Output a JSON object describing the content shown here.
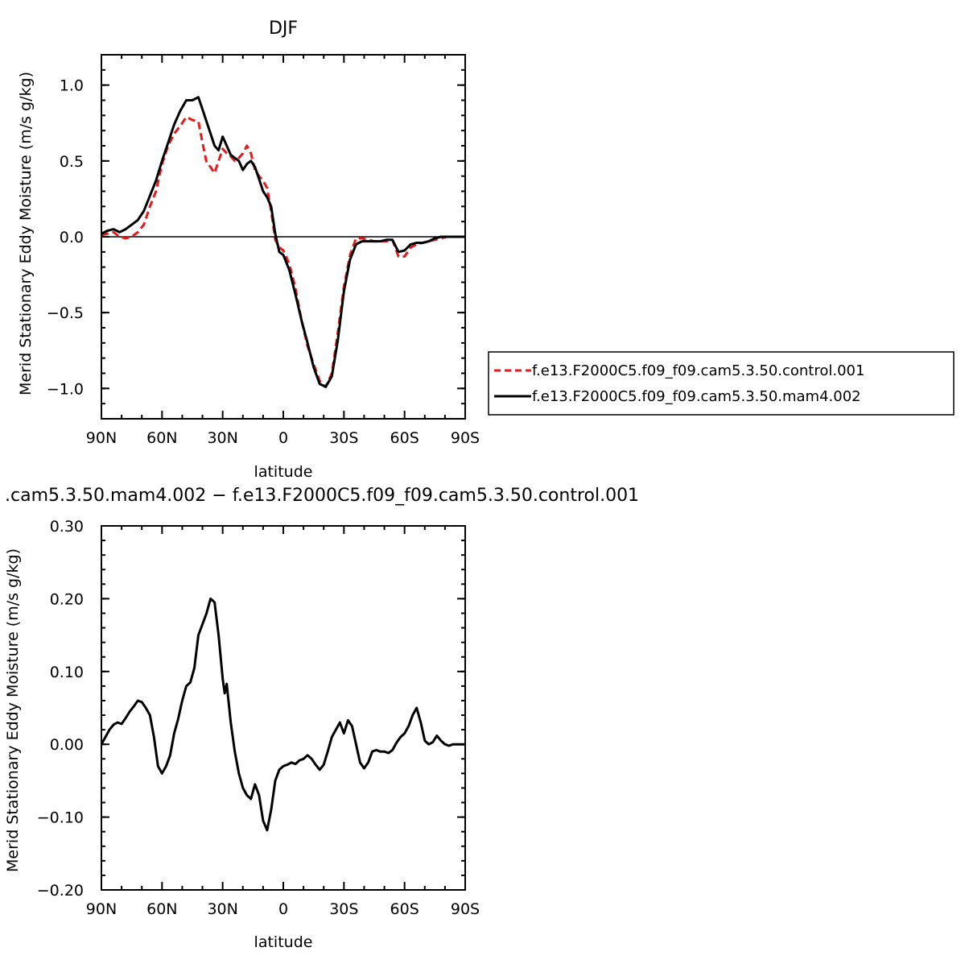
{
  "chart_data": [
    {
      "type": "line",
      "title": "DJF",
      "xlabel": "latitude",
      "ylabel": "Merid Stationary Eddy Moisture (m/s g/kg)",
      "xlim": [
        90,
        -90
      ],
      "ylim": [
        -1.2,
        1.2
      ],
      "x_ticks": [
        {
          "value": 90,
          "label": "90N"
        },
        {
          "value": 60,
          "label": "60N"
        },
        {
          "value": 30,
          "label": "30N"
        },
        {
          "value": 0,
          "label": "0"
        },
        {
          "value": -30,
          "label": "30S"
        },
        {
          "value": -60,
          "label": "60S"
        },
        {
          "value": -90,
          "label": "90S"
        }
      ],
      "y_ticks": [
        {
          "value": 1.0,
          "label": "1.0"
        },
        {
          "value": 0.5,
          "label": "0.5"
        },
        {
          "value": 0.0,
          "label": "0.0"
        },
        {
          "value": -0.5,
          "label": "−0.5"
        },
        {
          "value": -1.0,
          "label": "−1.0"
        }
      ],
      "legend_position": "right",
      "series": [
        {
          "name": "f.e13.F2000C5.f09_f09.cam5.3.50.control.001",
          "color": "#e41a1c",
          "style": "dashed",
          "x": [
            90,
            87,
            84,
            81,
            78,
            75,
            72,
            69,
            66,
            63,
            60,
            57,
            54,
            51,
            48,
            45,
            42,
            40,
            38,
            36,
            34,
            32,
            30,
            28,
            26,
            24,
            22,
            20,
            18,
            16,
            14,
            12,
            10,
            8,
            6,
            4,
            2,
            0,
            -3,
            -6,
            -9,
            -12,
            -15,
            -18,
            -21,
            -24,
            -27,
            -30,
            -33,
            -36,
            -39,
            -42,
            -45,
            -48,
            -51,
            -54,
            -57,
            -60,
            -63,
            -66,
            -69,
            -72,
            -75,
            -78,
            -81,
            -84,
            -87,
            -90
          ],
          "y": [
            0.01,
            0.02,
            0.03,
            0.0,
            -0.01,
            0.0,
            0.03,
            0.08,
            0.2,
            0.3,
            0.48,
            0.6,
            0.68,
            0.73,
            0.79,
            0.77,
            0.76,
            0.62,
            0.49,
            0.46,
            0.42,
            0.5,
            0.58,
            0.55,
            0.53,
            0.5,
            0.52,
            0.55,
            0.6,
            0.55,
            0.44,
            0.4,
            0.37,
            0.32,
            0.17,
            -0.02,
            -0.07,
            -0.09,
            -0.18,
            -0.34,
            -0.55,
            -0.72,
            -0.84,
            -0.95,
            -0.99,
            -0.9,
            -0.63,
            -0.33,
            -0.12,
            -0.01,
            -0.01,
            -0.02,
            -0.03,
            -0.03,
            -0.03,
            -0.02,
            -0.13,
            -0.13,
            -0.07,
            -0.05,
            -0.04,
            -0.03,
            -0.02,
            -0.01,
            0.0,
            0.0,
            0.0,
            0.0
          ]
        },
        {
          "name": "f.e13.F2000C5.f09_f09.cam5.3.50.mam4.002",
          "color": "#000000",
          "style": "solid",
          "x": [
            90,
            87,
            84,
            81,
            78,
            75,
            72,
            69,
            66,
            63,
            60,
            57,
            54,
            51,
            48,
            45,
            42,
            40,
            38,
            36,
            34,
            32,
            30,
            28,
            26,
            24,
            22,
            20,
            18,
            16,
            14,
            12,
            10,
            8,
            6,
            4,
            2,
            0,
            -3,
            -6,
            -9,
            -12,
            -15,
            -18,
            -21,
            -24,
            -27,
            -30,
            -33,
            -36,
            -39,
            -42,
            -45,
            -48,
            -51,
            -54,
            -57,
            -60,
            -63,
            -66,
            -69,
            -72,
            -75,
            -78,
            -81,
            -84,
            -87,
            -90
          ],
          "y": [
            0.02,
            0.04,
            0.05,
            0.03,
            0.05,
            0.08,
            0.11,
            0.17,
            0.27,
            0.37,
            0.5,
            0.62,
            0.74,
            0.83,
            0.9,
            0.9,
            0.92,
            0.84,
            0.76,
            0.68,
            0.6,
            0.57,
            0.66,
            0.6,
            0.54,
            0.52,
            0.5,
            0.44,
            0.48,
            0.5,
            0.46,
            0.38,
            0.3,
            0.26,
            0.2,
            0.02,
            -0.1,
            -0.12,
            -0.22,
            -0.38,
            -0.55,
            -0.7,
            -0.86,
            -0.97,
            -0.99,
            -0.92,
            -0.68,
            -0.36,
            -0.15,
            -0.05,
            -0.03,
            -0.03,
            -0.03,
            -0.03,
            -0.02,
            -0.02,
            -0.1,
            -0.09,
            -0.05,
            -0.04,
            -0.04,
            -0.03,
            -0.01,
            0.0,
            0.0,
            0.0,
            0.0,
            0.0
          ]
        }
      ]
    },
    {
      "type": "line",
      "title": ".cam5.3.50.mam4.002 − f.e13.F2000C5.f09_f09.cam5.3.50.control.001",
      "xlabel": "latitude",
      "ylabel": "Merid Stationary Eddy Moisture (m/s g/kg)",
      "xlim": [
        90,
        -90
      ],
      "ylim": [
        -0.2,
        0.3
      ],
      "x_ticks": [
        {
          "value": 90,
          "label": "90N"
        },
        {
          "value": 60,
          "label": "60N"
        },
        {
          "value": 30,
          "label": "30N"
        },
        {
          "value": 0,
          "label": "0"
        },
        {
          "value": -30,
          "label": "30S"
        },
        {
          "value": -60,
          "label": "60S"
        },
        {
          "value": -90,
          "label": "90S"
        }
      ],
      "y_ticks": [
        {
          "value": 0.3,
          "label": "0.30"
        },
        {
          "value": 0.2,
          "label": "0.20"
        },
        {
          "value": 0.1,
          "label": "0.10"
        },
        {
          "value": 0.0,
          "label": "0.00"
        },
        {
          "value": -0.1,
          "label": "−0.10"
        },
        {
          "value": -0.2,
          "label": "−0.20"
        }
      ],
      "series": [
        {
          "color": "#000000",
          "style": "solid",
          "x": [
            90,
            88,
            86,
            84,
            82,
            80,
            78,
            76,
            74,
            72,
            70,
            68,
            66,
            64,
            62,
            60,
            58,
            56,
            54,
            52,
            50,
            48,
            46,
            44,
            42,
            40,
            38,
            36,
            34,
            32,
            30,
            29,
            28,
            26,
            24,
            22,
            20,
            18,
            16,
            14,
            12,
            10,
            8,
            6,
            4,
            2,
            0,
            -2,
            -4,
            -6,
            -8,
            -10,
            -12,
            -14,
            -16,
            -18,
            -20,
            -22,
            -24,
            -26,
            -28,
            -30,
            -32,
            -34,
            -36,
            -38,
            -40,
            -42,
            -44,
            -46,
            -48,
            -50,
            -52,
            -54,
            -56,
            -58,
            -60,
            -62,
            -64,
            -66,
            -68,
            -70,
            -72,
            -74,
            -76,
            -78,
            -80,
            -82,
            -84,
            -86,
            -88,
            -90
          ],
          "y": [
            0.0,
            0.01,
            0.02,
            0.027,
            0.03,
            0.028,
            0.036,
            0.045,
            0.052,
            0.06,
            0.058,
            0.05,
            0.04,
            0.01,
            -0.03,
            -0.04,
            -0.03,
            -0.015,
            0.015,
            0.035,
            0.06,
            0.08,
            0.085,
            0.105,
            0.15,
            0.165,
            0.18,
            0.2,
            0.195,
            0.15,
            0.09,
            0.07,
            0.083,
            0.03,
            -0.01,
            -0.04,
            -0.06,
            -0.07,
            -0.075,
            -0.055,
            -0.07,
            -0.105,
            -0.118,
            -0.09,
            -0.05,
            -0.035,
            -0.03,
            -0.028,
            -0.025,
            -0.027,
            -0.022,
            -0.02,
            -0.015,
            -0.02,
            -0.028,
            -0.035,
            -0.028,
            -0.01,
            0.01,
            0.02,
            0.03,
            0.015,
            0.033,
            0.025,
            0.0,
            -0.025,
            -0.033,
            -0.025,
            -0.01,
            -0.008,
            -0.01,
            -0.01,
            -0.012,
            -0.008,
            0.002,
            0.01,
            0.015,
            0.025,
            0.04,
            0.05,
            0.03,
            0.005,
            0.0,
            0.003,
            0.012,
            0.005,
            0.0,
            -0.002,
            0.0,
            0.0,
            0.0,
            0.0
          ]
        }
      ]
    }
  ]
}
